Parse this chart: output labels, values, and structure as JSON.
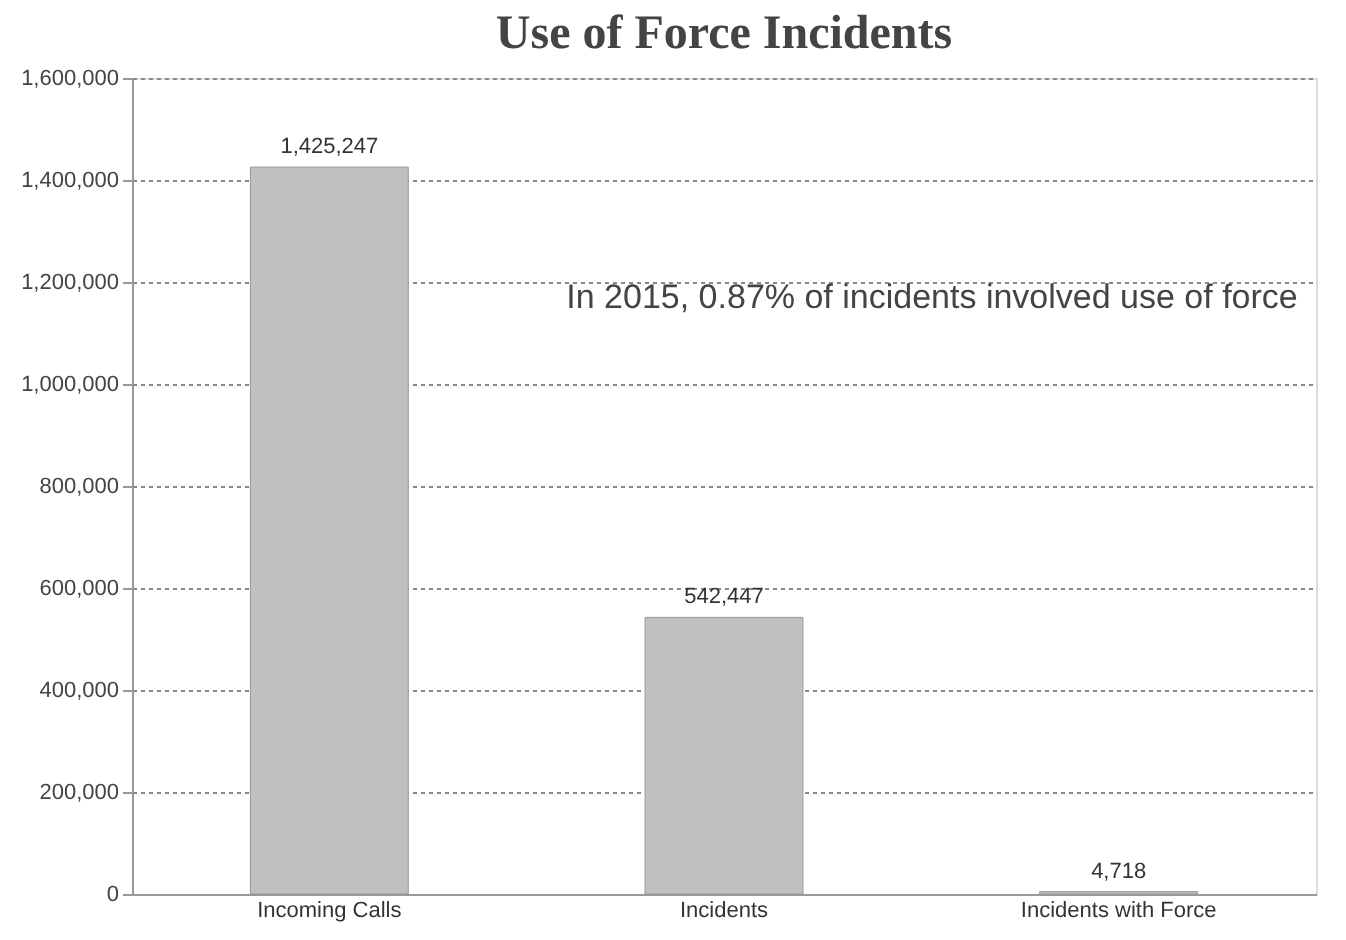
{
  "chart_data": {
    "type": "bar",
    "title": "Use of Force Incidents",
    "categories": [
      "Incoming Calls",
      "Incidents",
      "Incidents with Force"
    ],
    "values": [
      1425247,
      542447,
      4718
    ],
    "color": "#c0c0c0",
    "value_labels": [
      "1,425,247",
      "542,447",
      "4,718"
    ],
    "ylim": [
      0,
      1600000
    ],
    "yticks": [
      0,
      {
        "value": 200000,
        "label": "200,000"
      },
      {
        "value": 400000,
        "label": "400,000"
      },
      {
        "value": 600000,
        "label": "600,000"
      },
      {
        "value": 800000,
        "label": "800,000"
      },
      {
        "value": 1000000,
        "label": "1,000,000"
      },
      {
        "value": 1200000,
        "label": "1,200,000"
      },
      {
        "value": 1400000,
        "label": "1,400,000"
      },
      {
        "value": 1600000,
        "label": "1,600,000"
      }
    ],
    "grid": "y",
    "annotations": [
      "In 2015, 0.87% of incidents involved use of force"
    ]
  }
}
